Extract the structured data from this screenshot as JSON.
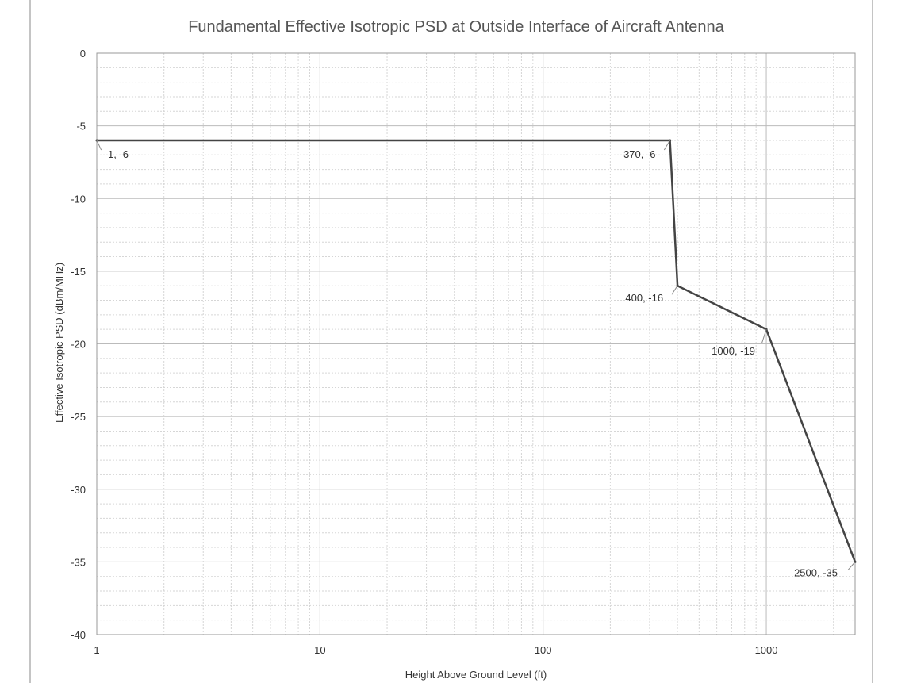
{
  "chart_data": {
    "type": "line",
    "title": "Fundamental Effective Isotropic PSD at Outside Interface of Aircraft Antenna",
    "xlabel": "Height Above Ground Level (ft)",
    "ylabel": "Effective Isotropic PSD (dBm/MHz)",
    "x_scale": "log",
    "xlim": [
      1,
      2500
    ],
    "ylim": [
      -40,
      0
    ],
    "x_ticks": [
      1,
      10,
      100,
      1000
    ],
    "x_tick_labels": [
      "1",
      "10",
      "100",
      "1000"
    ],
    "y_ticks": [
      0,
      -5,
      -10,
      -15,
      -20,
      -25,
      -30,
      -35,
      -40
    ],
    "y_tick_labels": [
      "0",
      "-5",
      "-10",
      "-15",
      "-20",
      "-25",
      "-30",
      "-35",
      "-40"
    ],
    "grid": true,
    "series": [
      {
        "x": [
          1,
          370,
          400,
          1000,
          2500
        ],
        "y": [
          -6,
          -6,
          -16,
          -19,
          -35
        ],
        "color": "#444444"
      }
    ],
    "annotations": [
      {
        "x": 1,
        "y": -6,
        "text": "1, -6"
      },
      {
        "x": 370,
        "y": -6,
        "text": "370, -6"
      },
      {
        "x": 400,
        "y": -16,
        "text": "400, -16"
      },
      {
        "x": 1000,
        "y": -19,
        "text": "1000, -19"
      },
      {
        "x": 2500,
        "y": -35,
        "text": "2500, -35"
      }
    ]
  }
}
